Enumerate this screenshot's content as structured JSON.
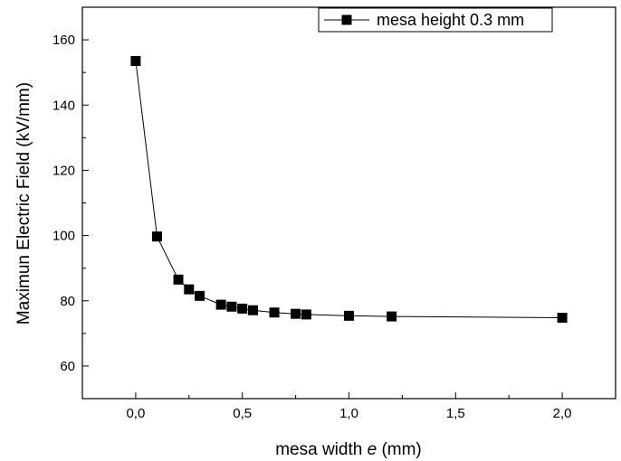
{
  "chart_data": {
    "type": "line",
    "title": "",
    "xlabel": {
      "prefix": "mesa width ",
      "variable": "e",
      "suffix": " (mm)"
    },
    "ylabel": "Maximun Electric Field (kV/mm)",
    "xlim": [
      -0.25,
      2.25
    ],
    "ylim": [
      50,
      170
    ],
    "x_ticks": [
      {
        "value": 0.0,
        "label": "0,0"
      },
      {
        "value": 0.5,
        "label": "0,5"
      },
      {
        "value": 1.0,
        "label": "1,0"
      },
      {
        "value": 1.5,
        "label": "1,5"
      },
      {
        "value": 2.0,
        "label": "2,0"
      }
    ],
    "y_ticks": [
      {
        "value": 60,
        "label": "60"
      },
      {
        "value": 80,
        "label": "80"
      },
      {
        "value": 100,
        "label": "100"
      },
      {
        "value": 120,
        "label": "120"
      },
      {
        "value": 140,
        "label": "140"
      },
      {
        "value": 160,
        "label": "160"
      }
    ],
    "legend_position": "top-right",
    "grid": false,
    "series": [
      {
        "name": "mesa height 0.3 mm",
        "marker": "square",
        "color": "#000000",
        "x": [
          0.0,
          0.1,
          0.2,
          0.25,
          0.3,
          0.4,
          0.45,
          0.5,
          0.55,
          0.65,
          0.75,
          0.8,
          1.0,
          1.2,
          2.0
        ],
        "y": [
          153.5,
          99.7,
          86.5,
          83.5,
          81.5,
          78.8,
          78.2,
          77.6,
          77.1,
          76.4,
          76.0,
          75.8,
          75.4,
          75.2,
          74.8
        ]
      }
    ]
  }
}
